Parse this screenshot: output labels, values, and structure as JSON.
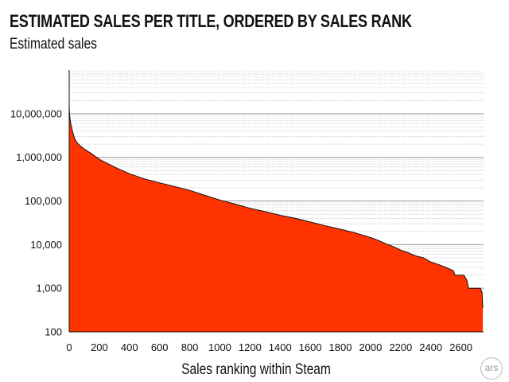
{
  "chart_data": {
    "type": "area",
    "title": "ESTIMATED SALES PER TITLE, ORDERED BY SALES RANK",
    "subtitle": "Estimated sales",
    "xlabel": "Sales ranking within Steam",
    "ylabel": "",
    "yscale": "log",
    "ylim": [
      100,
      100000000
    ],
    "xlim": [
      0,
      2750
    ],
    "grid": true,
    "fill_color": "#ff3300",
    "line_color": "#111111",
    "y_ticks": [
      100,
      1000,
      10000,
      100000,
      1000000,
      10000000
    ],
    "y_tick_labels": [
      "100",
      "1,000",
      "10,000",
      "100,000",
      "1,000,000",
      "10,000,000"
    ],
    "x_ticks": [
      0,
      200,
      400,
      600,
      800,
      1000,
      1200,
      1400,
      1600,
      1800,
      2000,
      2200,
      2400,
      2600
    ],
    "x_tick_labels": [
      "0",
      "200",
      "400",
      "600",
      "800",
      "1000",
      "1200",
      "1400",
      "1600",
      "1800",
      "2000",
      "2200",
      "2400",
      "2600"
    ],
    "series": [
      {
        "x": [
          0,
          2,
          5,
          10,
          20,
          30,
          40,
          60,
          80,
          100,
          150,
          200,
          300,
          400,
          500,
          600,
          700,
          800,
          900,
          1000,
          1100,
          1200,
          1300,
          1400,
          1500,
          1600,
          1700,
          1800,
          1900,
          2000,
          2050,
          2100,
          2150,
          2200,
          2250,
          2300,
          2350,
          2400,
          2450,
          2500,
          2550,
          2560,
          2620,
          2640,
          2650,
          2730,
          2740,
          2745
        ],
        "y": [
          15000000,
          10000000,
          8000000,
          6000000,
          4200000,
          3100000,
          2500000,
          2000000,
          1750000,
          1550000,
          1200000,
          900000,
          600000,
          420000,
          320000,
          260000,
          215000,
          175000,
          135000,
          105000,
          85000,
          68000,
          57000,
          47000,
          40000,
          33000,
          27000,
          22500,
          18500,
          14500,
          12500,
          10500,
          9000,
          7500,
          6500,
          5500,
          5000,
          4000,
          3500,
          3000,
          2500,
          2000,
          2000,
          1500,
          1000,
          1000,
          800,
          350
        ]
      }
    ]
  },
  "branding": {
    "logo_text": "ars"
  }
}
